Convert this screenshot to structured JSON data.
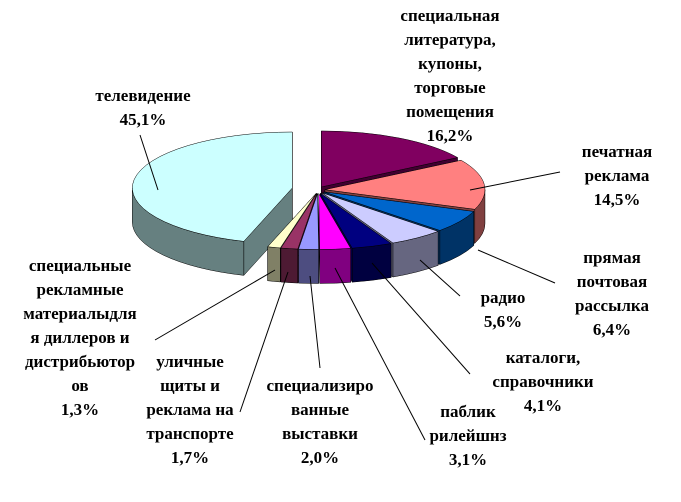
{
  "chart_data": {
    "type": "pie3d",
    "categories": [
      "специальная\nлитература,\nкупоны,\nторговые\nпомещения",
      "печатная\nреклама",
      "прямая\nпочтовая\nрассылка",
      "радио",
      "каталоги,\nсправочники",
      "паблик\nрилейшнз",
      "специализиро\nванные\nвыставки",
      "уличные\nщиты и\nреклама на\nтранспорте",
      "специальные\nрекламные\nматериалыдля\nя диллеров и\nдистрибьютор\nов",
      "телевидение"
    ],
    "values": [
      16.2,
      14.5,
      6.4,
      5.6,
      4.1,
      3.1,
      2.0,
      1.7,
      1.3,
      45.1
    ],
    "value_labels": [
      "16,2%",
      "14,5%",
      "6,4%",
      "5,6%",
      "4,1%",
      "3,1%",
      "2,0%",
      "1,7%",
      "1,3%",
      "45,1%"
    ],
    "colors": [
      "#800060",
      "#ff8080",
      "#0066cc",
      "#ccccff",
      "#000080",
      "#ff00ff",
      "#9999ff",
      "#993366",
      "#ffffcc",
      "#ccffff"
    ]
  }
}
